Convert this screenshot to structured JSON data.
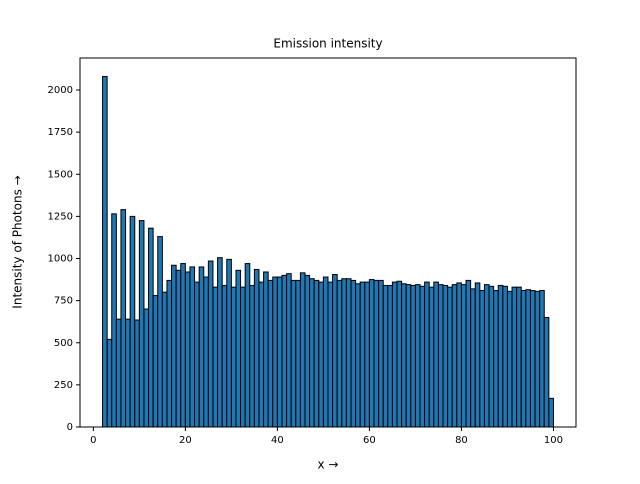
{
  "chart_data": {
    "type": "histogram",
    "title": "Emission intensity",
    "xlabel": "x →",
    "ylabel": "Intensity of Photons →",
    "bins": [
      2,
      3,
      4,
      5,
      6,
      7,
      8,
      9,
      10,
      11,
      12,
      13,
      14,
      15,
      16,
      17,
      18,
      19,
      20,
      21,
      22,
      23,
      24,
      25,
      26,
      27,
      28,
      29,
      30,
      31,
      32,
      33,
      34,
      35,
      36,
      37,
      38,
      39,
      40,
      41,
      42,
      43,
      44,
      45,
      46,
      47,
      48,
      49,
      50,
      51,
      52,
      53,
      54,
      55,
      56,
      57,
      58,
      59,
      60,
      61,
      62,
      63,
      64,
      65,
      66,
      67,
      68,
      69,
      70,
      71,
      72,
      73,
      74,
      75,
      76,
      77,
      78,
      79,
      80,
      81,
      82,
      83,
      84,
      85,
      86,
      87,
      88,
      89,
      90,
      91,
      92,
      93,
      94,
      95,
      96,
      97,
      98,
      99,
      100
    ],
    "counts": [
      2080,
      520,
      1265,
      640,
      1290,
      640,
      1250,
      635,
      1225,
      700,
      1180,
      780,
      1130,
      800,
      870,
      960,
      930,
      970,
      920,
      950,
      860,
      950,
      890,
      985,
      830,
      1005,
      840,
      995,
      830,
      930,
      830,
      970,
      840,
      935,
      860,
      920,
      870,
      890,
      890,
      900,
      910,
      870,
      870,
      915,
      900,
      880,
      870,
      860,
      890,
      860,
      905,
      870,
      880,
      880,
      870,
      850,
      860,
      860,
      875,
      870,
      870,
      840,
      840,
      860,
      865,
      850,
      845,
      840,
      845,
      835,
      860,
      830,
      860,
      845,
      840,
      830,
      845,
      855,
      845,
      870,
      820,
      855,
      810,
      845,
      835,
      810,
      840,
      835,
      805,
      830,
      830,
      810,
      815,
      810,
      805,
      810,
      650,
      170
    ],
    "color": "#1f77b4",
    "edgecolor": "#000000",
    "xlim": [
      -2.9,
      104.9
    ],
    "xticks": [
      0,
      20,
      40,
      60,
      80,
      100
    ],
    "ylim": [
      0,
      2190
    ],
    "yticks": [
      0,
      250,
      500,
      750,
      1000,
      1250,
      1500,
      1750,
      2000
    ]
  }
}
